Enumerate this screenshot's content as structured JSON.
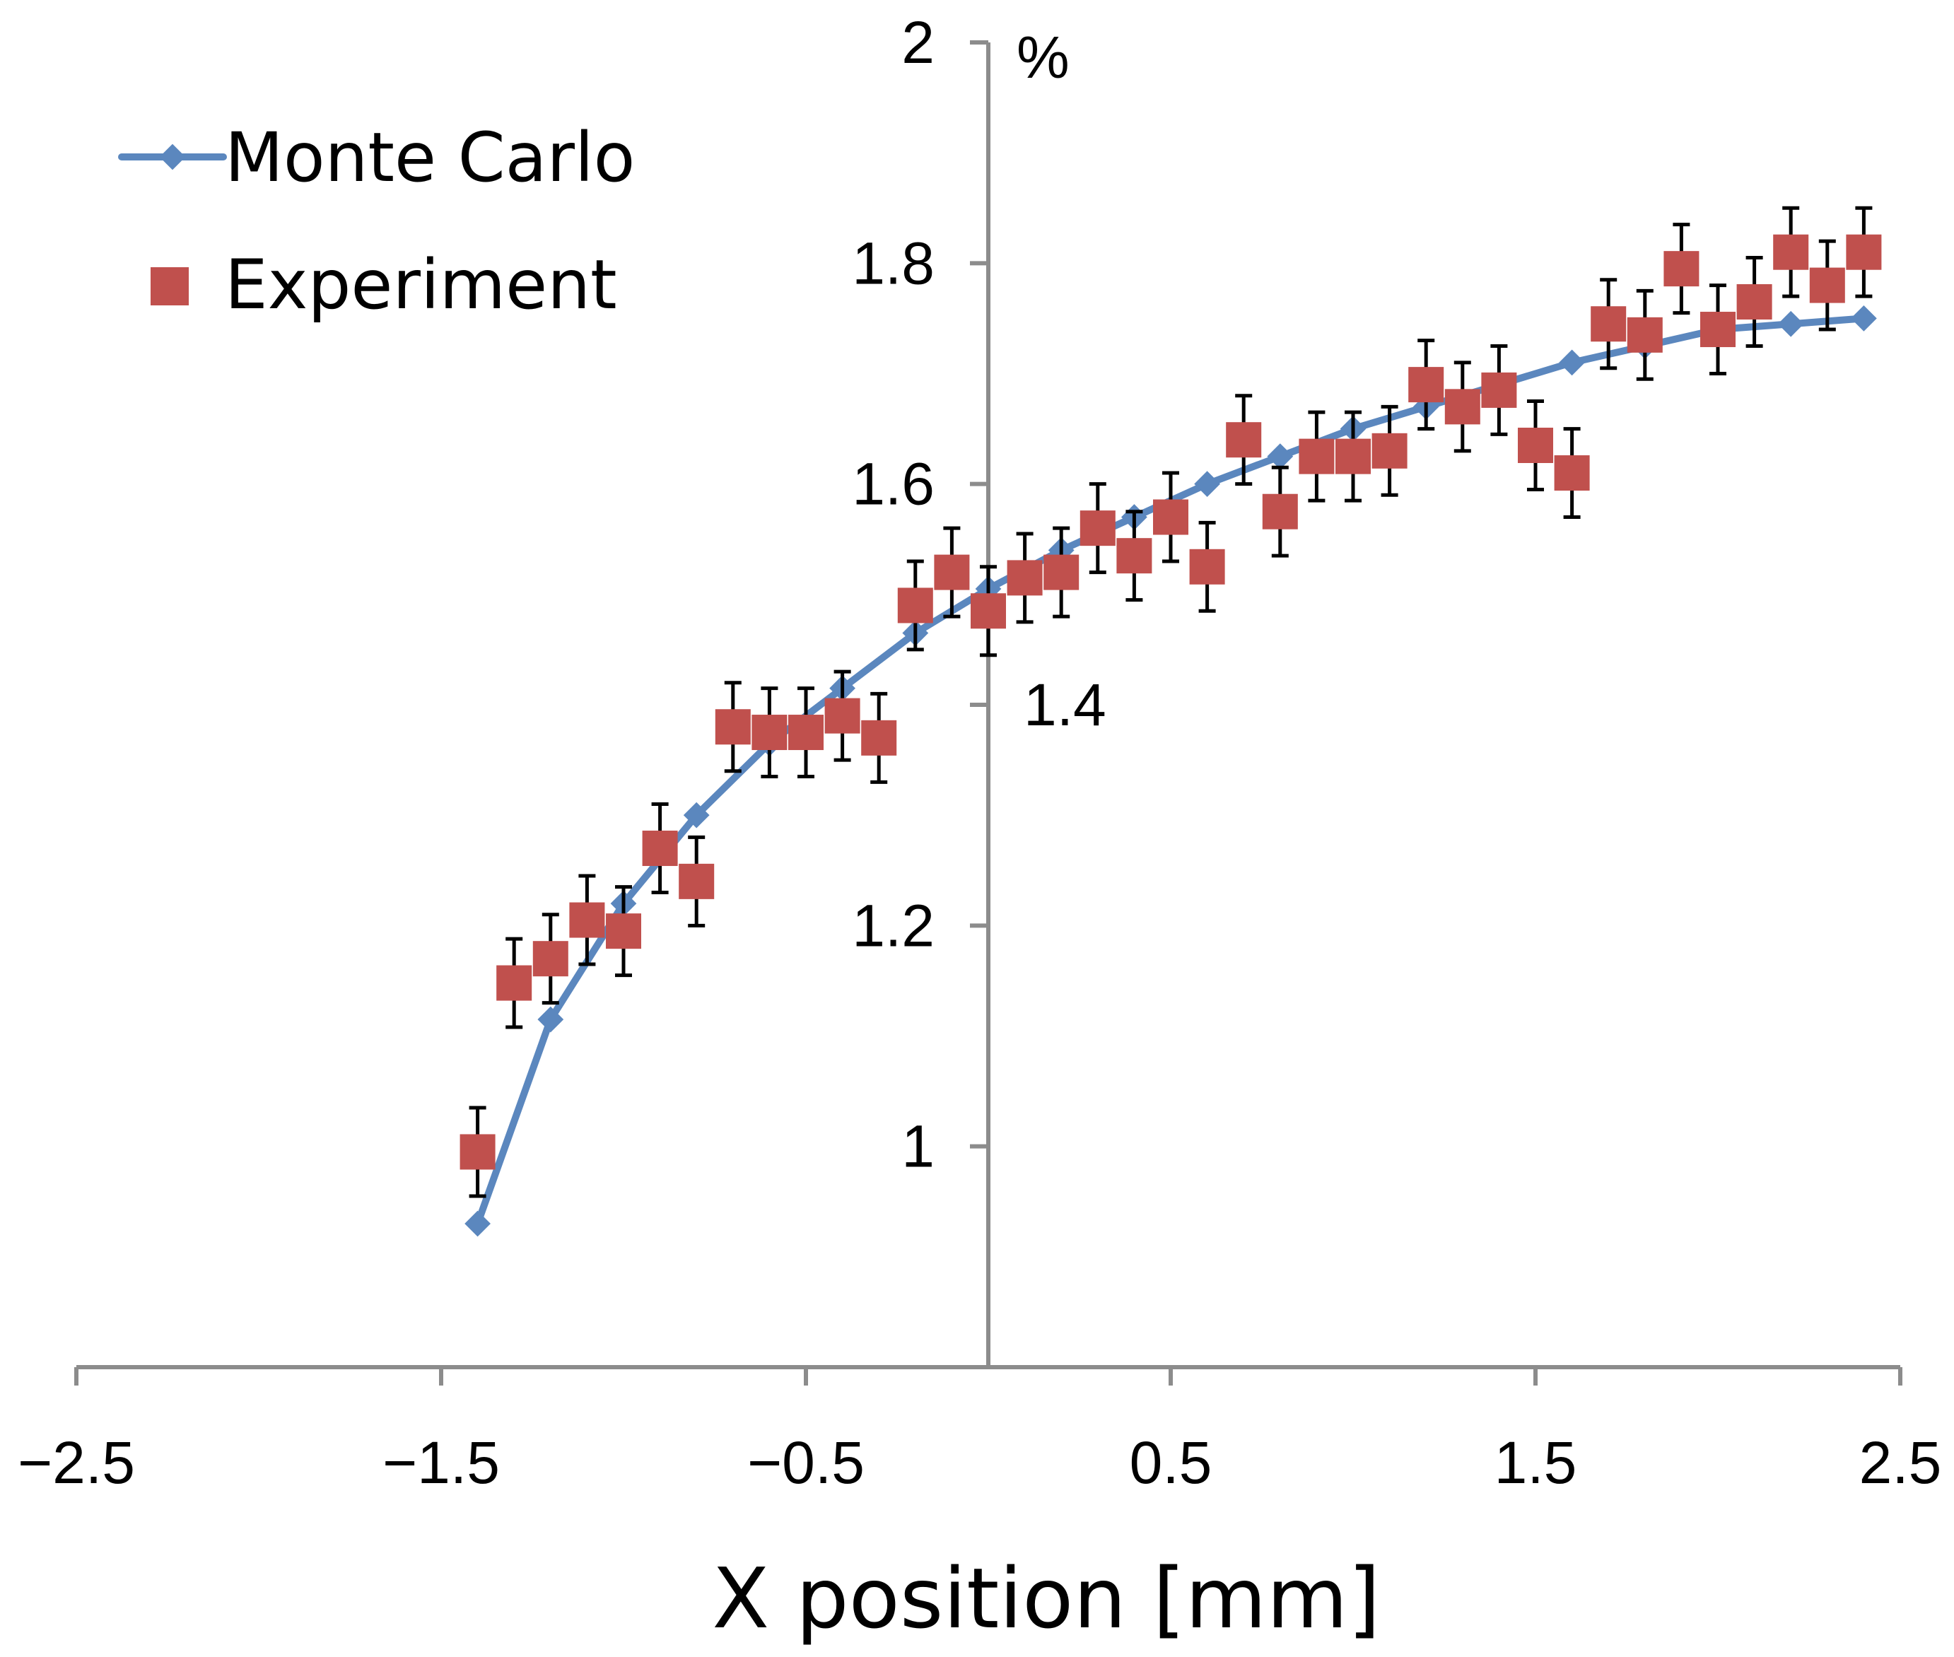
{
  "chart_data": {
    "type": "scatter",
    "xlabel": "X position [mm]",
    "ylabel": "%",
    "xlim": [
      -2.5,
      2.5
    ],
    "ylim": [
      0.8,
      2.0
    ],
    "x_ticks": [
      -2.5,
      -1.5,
      -0.5,
      0.5,
      1.5,
      2.5
    ],
    "x_tick_labels": [
      "−2.5",
      "−1.5",
      "−0.5",
      "0.5",
      "1.5",
      "2.5"
    ],
    "y_ticks": [
      1.0,
      1.2,
      1.4,
      1.6,
      1.8,
      2.0
    ],
    "y_tick_labels": [
      "1",
      "1.2",
      "1.4",
      "1.6",
      "1.8",
      "2"
    ],
    "y_axis_at_x": 0,
    "legend_position": "top-left",
    "colors": {
      "monte_carlo": "#5b87be",
      "experiment": "#c0504d",
      "axis": "#8c8c8c",
      "error_bar": "#000000"
    },
    "series": [
      {
        "name": "Monte Carlo",
        "kind": "line-with-diamonds",
        "x": [
          -1.4,
          -1.2,
          -1.0,
          -0.8,
          -0.6,
          -0.4,
          -0.2,
          0.0,
          0.2,
          0.4,
          0.6,
          0.8,
          1.0,
          1.2,
          1.4,
          1.6,
          1.8,
          2.0,
          2.2,
          2.4
        ],
        "y": [
          0.93,
          1.115,
          1.22,
          1.3,
          1.365,
          1.415,
          1.465,
          1.505,
          1.54,
          1.57,
          1.6,
          1.625,
          1.65,
          1.67,
          1.69,
          1.71,
          1.725,
          1.74,
          1.745,
          1.75
        ]
      },
      {
        "name": "Experiment",
        "kind": "squares-with-error-bars",
        "x": [
          -1.4,
          -1.3,
          -1.2,
          -1.1,
          -1.0,
          -0.9,
          -0.8,
          -0.7,
          -0.6,
          -0.5,
          -0.4,
          -0.3,
          -0.2,
          -0.1,
          0.0,
          0.1,
          0.2,
          0.3,
          0.4,
          0.5,
          0.6,
          0.7,
          0.8,
          0.9,
          1.0,
          1.1,
          1.2,
          1.3,
          1.4,
          1.5,
          1.6,
          1.7,
          1.8,
          1.9,
          2.0,
          2.1,
          2.2,
          2.3,
          2.4
        ],
        "y": [
          0.995,
          1.148,
          1.17,
          1.205,
          1.195,
          1.27,
          1.24,
          1.38,
          1.375,
          1.375,
          1.39,
          1.37,
          1.49,
          1.52,
          1.485,
          1.515,
          1.52,
          1.56,
          1.535,
          1.57,
          1.525,
          1.64,
          1.575,
          1.625,
          1.625,
          1.63,
          1.69,
          1.67,
          1.685,
          1.635,
          1.61,
          1.745,
          1.735,
          1.795,
          1.74,
          1.765,
          1.81,
          1.78,
          1.81
        ],
        "error": 0.04
      }
    ]
  }
}
